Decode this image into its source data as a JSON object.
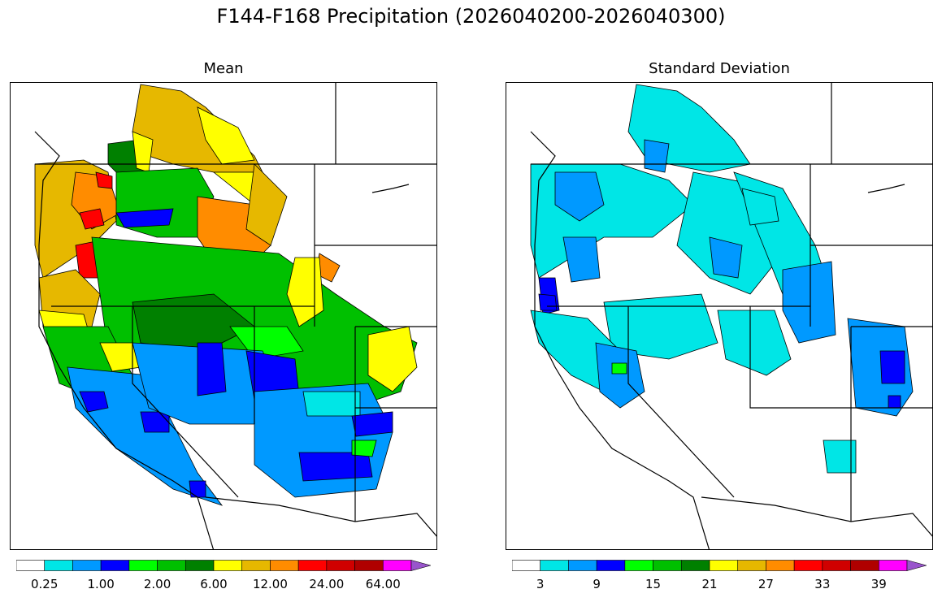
{
  "figure": {
    "title": "F144-F168 Precipitation (2026040200-2026040300)"
  },
  "panels": [
    {
      "title": "Mean",
      "colorbar": {
        "colors": [
          "#ffffff",
          "#00e6e6",
          "#0099ff",
          "#0000ff",
          "#00ff00",
          "#00c000",
          "#008000",
          "#ffff00",
          "#e6b800",
          "#ff8c00",
          "#ff0000",
          "#d00000",
          "#b00000",
          "#ff00ff",
          "#9955cc"
        ],
        "tick_labels": [
          "0.25",
          "1.00",
          "2.00",
          "6.00",
          "12.00",
          "24.00",
          "64.00"
        ],
        "extend": "max"
      }
    },
    {
      "title": "Standard Deviation",
      "colorbar": {
        "colors": [
          "#ffffff",
          "#00e6e6",
          "#0099ff",
          "#0000ff",
          "#00ff00",
          "#00c000",
          "#008000",
          "#ffff00",
          "#e6b800",
          "#ff8c00",
          "#ff0000",
          "#d00000",
          "#b00000",
          "#ff00ff",
          "#9955cc"
        ],
        "tick_labels": [
          "3",
          "9",
          "15",
          "21",
          "27",
          "33",
          "39"
        ],
        "extend": "max"
      }
    }
  ]
}
